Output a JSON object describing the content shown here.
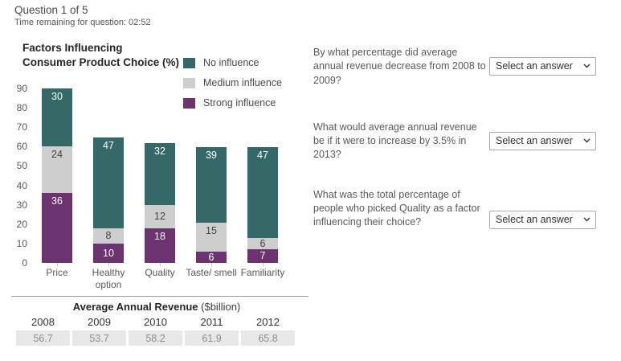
{
  "header": {
    "question_progress": "Question 1 of 5",
    "time_remaining": "Time remaining for question: 02:52"
  },
  "chart": {
    "title_line1": "Factors Influencing",
    "title_line2": "Consumer Product Choice (%)"
  },
  "chart_data": [
    {
      "type": "bar",
      "stacked": true,
      "title": "Factors Influencing Consumer Product Choice (%)",
      "categories": [
        "Price",
        "Healthy option",
        "Quality",
        "Taste/ smell",
        "Familiarity"
      ],
      "series": [
        {
          "name": "Strong influence",
          "color": "#6B3470",
          "label_color": "#ffffff",
          "values": [
            36,
            10,
            18,
            6,
            7
          ]
        },
        {
          "name": "Medium influence",
          "color": "#CECECE",
          "label_color": "#444444",
          "values": [
            24,
            8,
            12,
            15,
            6
          ]
        },
        {
          "name": "No influence",
          "color": "#346968",
          "label_color": "#ffffff",
          "values": [
            30,
            47,
            32,
            39,
            47
          ]
        }
      ],
      "totals_by_category": [
        90,
        65,
        62,
        60,
        60
      ],
      "ylim": [
        0,
        90
      ],
      "ytick_step": 10,
      "grid": false,
      "legend_position": "top-right",
      "legend_order_top_to_bottom": [
        "No influence",
        "Medium influence",
        "Strong influence"
      ]
    },
    {
      "type": "table",
      "title_bold": "Average Annual Revenue",
      "title_note": " ($billion)",
      "columns": [
        "2008",
        "2009",
        "2010",
        "2011",
        "2012"
      ],
      "values": [
        "56.7",
        "53.7",
        "58.2",
        "61.9",
        "65.8"
      ]
    }
  ],
  "questions": [
    {
      "text": "By what percentage did average annual revenue decrease from 2008 to 2009?",
      "select_value": "Select an answer"
    },
    {
      "text": "What would average annual revenue be if it were to increase by 3.5% in 2013?",
      "select_value": "Select an answer"
    },
    {
      "text": "What was the total percentage of people who picked Quality as a factor influencing their choice?",
      "select_value": "Select an answer"
    }
  ],
  "colors": {
    "no_influence": "#346968",
    "medium_influence": "#CECECE",
    "strong_influence": "#6B3470",
    "table_cell_bg": "#e8e8e8"
  }
}
